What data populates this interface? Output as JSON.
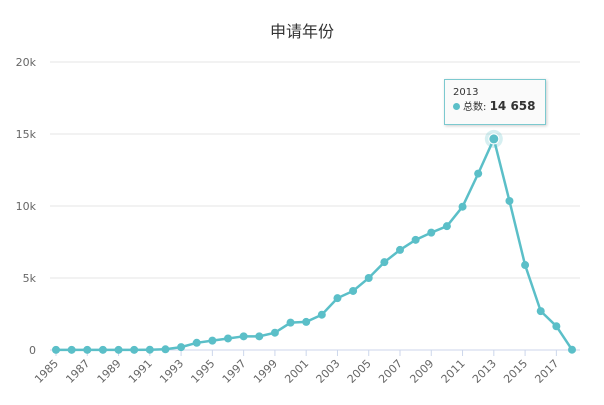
{
  "chart_data": {
    "type": "line",
    "title": "申请年份",
    "x": [
      1985,
      1986,
      1987,
      1988,
      1989,
      1990,
      1991,
      1992,
      1993,
      1994,
      1995,
      1996,
      1997,
      1998,
      1999,
      2000,
      2001,
      2002,
      2003,
      2004,
      2005,
      2006,
      2007,
      2008,
      2009,
      2010,
      2011,
      2012,
      2013,
      2014,
      2015,
      2016,
      2017,
      2018
    ],
    "series": [
      {
        "name": "总数",
        "values": [
          10,
          10,
          10,
          10,
          10,
          10,
          20,
          50,
          200,
          500,
          650,
          800,
          950,
          950,
          1200,
          1900,
          1950,
          2450,
          3600,
          4100,
          5000,
          6100,
          6950,
          7650,
          8150,
          8600,
          9950,
          12250,
          14658,
          10350,
          5900,
          2700,
          1650,
          20
        ]
      }
    ],
    "xticks": [
      "1985",
      "1987",
      "1989",
      "1991",
      "1993",
      "1995",
      "1997",
      "1999",
      "2001",
      "2003",
      "2005",
      "2007",
      "2009",
      "2011",
      "2013",
      "2015",
      "2017"
    ],
    "yticks": [
      "0",
      "5k",
      "10k",
      "15k",
      "20k"
    ],
    "ylim": [
      0,
      20000
    ],
    "grid": true,
    "color": "#5bbfc8",
    "tooltip": {
      "year": "2013",
      "label": "总数:",
      "value": "14 658"
    }
  }
}
